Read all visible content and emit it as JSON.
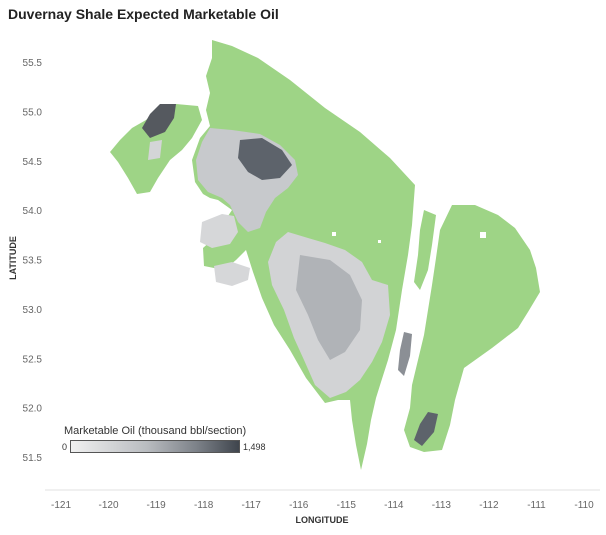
{
  "title": "Duvernay Shale Expected Marketable Oil",
  "axes": {
    "xlabel": "LONGITUDE",
    "ylabel": "LATITUDE",
    "x_ticks": [
      "-121",
      "-120",
      "-119",
      "-118",
      "-117",
      "-116",
      "-115",
      "-114",
      "-113",
      "-112",
      "-111",
      "-110"
    ],
    "y_ticks": [
      "55.5",
      "55.0",
      "54.5",
      "54.0",
      "53.5",
      "53.0",
      "52.5",
      "52.0",
      "51.5"
    ]
  },
  "legend": {
    "title": "Marketable Oil (thousand bbl/section)",
    "min_label": "0",
    "max_label": "1,498"
  },
  "colors": {
    "green_region": "#9ed486",
    "low_oil": "#f0f0f0",
    "high_oil": "#3f454d"
  }
}
